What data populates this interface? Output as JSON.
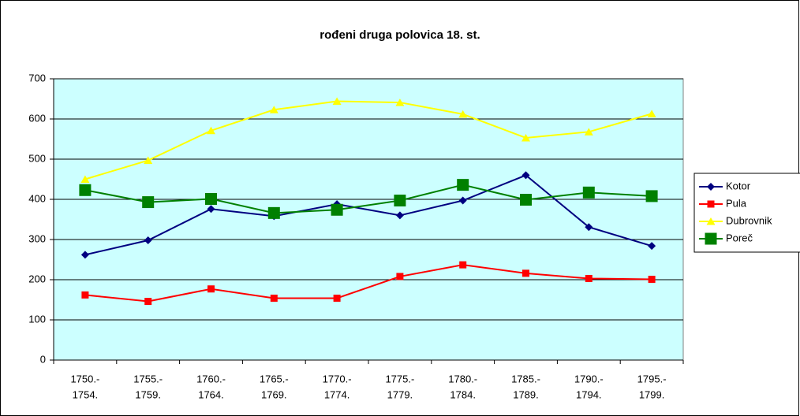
{
  "chart_data": {
    "type": "line",
    "title": "rođeni druga polovica 18. st.",
    "categories": [
      [
        "1750.-",
        "1754."
      ],
      [
        "1755.-",
        "1759."
      ],
      [
        "1760.-",
        "1764."
      ],
      [
        "1765.-",
        "1769."
      ],
      [
        "1770.-",
        "1774."
      ],
      [
        "1775.-",
        "1779."
      ],
      [
        "1780.-",
        "1784."
      ],
      [
        "1785.-",
        "1789."
      ],
      [
        "1790.-",
        "1794."
      ],
      [
        "1795.-",
        "1799."
      ]
    ],
    "series": [
      {
        "name": "Kotor",
        "color": "#000080",
        "marker": "diamond",
        "values": [
          262,
          298,
          376,
          358,
          388,
          360,
          397,
          460,
          331,
          284
        ]
      },
      {
        "name": "Pula",
        "color": "#ff0000",
        "marker": "square",
        "values": [
          162,
          146,
          177,
          154,
          154,
          208,
          237,
          216,
          203,
          201
        ]
      },
      {
        "name": "Dubrovnik",
        "color": "#ffff00",
        "marker": "triangle",
        "values": [
          450,
          497,
          571,
          623,
          644,
          641,
          612,
          553,
          568,
          613
        ]
      },
      {
        "name": "Poreč",
        "color": "#008000",
        "marker": "bigsquare",
        "values": [
          423,
          393,
          401,
          366,
          374,
          397,
          436,
          399,
          417,
          408
        ]
      }
    ],
    "ylim": [
      0,
      700
    ],
    "yticks": [
      0,
      100,
      200,
      300,
      400,
      500,
      600,
      700
    ],
    "grid": true,
    "legend": "right",
    "plot_background": "#ccffff"
  }
}
